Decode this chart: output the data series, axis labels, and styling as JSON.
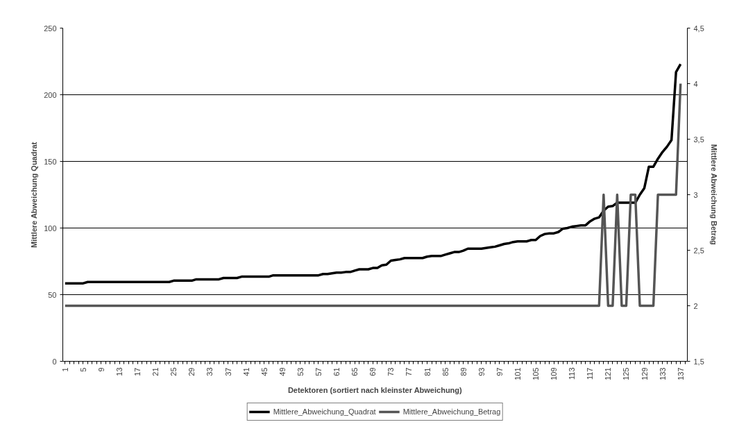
{
  "chart_data": {
    "type": "line",
    "xlabel": "Detektoren (sortiert nach kleinster Abweichung)",
    "ylabel": "Mittlere Abweichung Quadrat",
    "y2label": "Mittlere Abweichung Betrag",
    "categories": [
      "1",
      null,
      null,
      null,
      "5",
      null,
      null,
      null,
      "9",
      null,
      null,
      null,
      "13",
      null,
      null,
      null,
      "17",
      null,
      null,
      null,
      "21",
      null,
      null,
      null,
      "25",
      null,
      null,
      null,
      "29",
      null,
      null,
      null,
      "33",
      null,
      null,
      null,
      "37",
      null,
      null,
      null,
      "41",
      null,
      null,
      null,
      "45",
      null,
      null,
      null,
      "49",
      null,
      null,
      null,
      "53",
      null,
      null,
      null,
      "57",
      null,
      null,
      null,
      "61",
      null,
      null,
      null,
      "65",
      null,
      null,
      null,
      "69",
      null,
      null,
      null,
      "73",
      null,
      null,
      null,
      "77",
      null,
      null,
      null,
      "81",
      null,
      null,
      null,
      "85",
      null,
      null,
      null,
      "89",
      null,
      null,
      null,
      "93",
      null,
      null,
      null,
      "97",
      null,
      null,
      null,
      "101",
      null,
      null,
      null,
      "105",
      null,
      null,
      null,
      "109",
      null,
      null,
      null,
      "113",
      null,
      null,
      null,
      "117",
      null,
      null,
      null,
      "121",
      null,
      null,
      null,
      "125",
      null,
      null,
      null,
      "129",
      null,
      null,
      null,
      "133",
      null,
      null,
      null,
      "137",
      null
    ],
    "series": [
      {
        "name": "Mittlere_Abweichung_Quadrat",
        "color": "#000000",
        "values": [
          58.5,
          58.5,
          58.5,
          58.5,
          58.5,
          59.5,
          59.5,
          59.5,
          59.5,
          59.5,
          59.5,
          59.5,
          59.5,
          59.5,
          59.5,
          59.5,
          59.5,
          59.5,
          59.5,
          59.5,
          59.5,
          59.5,
          59.5,
          59.5,
          60.5,
          60.5,
          60.5,
          60.5,
          60.5,
          61.5,
          61.5,
          61.5,
          61.5,
          61.5,
          61.5,
          62.5,
          62.5,
          62.5,
          62.5,
          63.5,
          63.5,
          63.5,
          63.5,
          63.5,
          63.5,
          63.5,
          64.5,
          64.5,
          64.5,
          64.5,
          64.5,
          64.5,
          64.5,
          64.5,
          64.5,
          64.5,
          64.5,
          65.5,
          65.5,
          66,
          66.5,
          66.5,
          67,
          67,
          68,
          69,
          69,
          69,
          70,
          70,
          72,
          72.5,
          75.5,
          76,
          76.5,
          77.5,
          77.5,
          77.5,
          77.5,
          77.5,
          78.5,
          79,
          79,
          79,
          80,
          81,
          82,
          82,
          83,
          84.5,
          84.5,
          84.5,
          84.5,
          85,
          85.5,
          86,
          87,
          88,
          88.5,
          89.5,
          90,
          90,
          90,
          91,
          91,
          94,
          95.5,
          96,
          96,
          97,
          99.5,
          100,
          101,
          101.5,
          102,
          102,
          105,
          107,
          108,
          113,
          116,
          116.5,
          119,
          119,
          119,
          119,
          119,
          125,
          130,
          146,
          146,
          152,
          157,
          161,
          166,
          217,
          223,
          null
        ]
      },
      {
        "name": "Mittlere_Abweichung_Betrag",
        "color": "#555555",
        "axis": "y2",
        "values": [
          2,
          2,
          2,
          2,
          2,
          2,
          2,
          2,
          2,
          2,
          2,
          2,
          2,
          2,
          2,
          2,
          2,
          2,
          2,
          2,
          2,
          2,
          2,
          2,
          2,
          2,
          2,
          2,
          2,
          2,
          2,
          2,
          2,
          2,
          2,
          2,
          2,
          2,
          2,
          2,
          2,
          2,
          2,
          2,
          2,
          2,
          2,
          2,
          2,
          2,
          2,
          2,
          2,
          2,
          2,
          2,
          2,
          2,
          2,
          2,
          2,
          2,
          2,
          2,
          2,
          2,
          2,
          2,
          2,
          2,
          2,
          2,
          2,
          2,
          2,
          2,
          2,
          2,
          2,
          2,
          2,
          2,
          2,
          2,
          2,
          2,
          2,
          2,
          2,
          2,
          2,
          2,
          2,
          2,
          2,
          2,
          2,
          2,
          2,
          2,
          2,
          2,
          2,
          2,
          2,
          2,
          2,
          2,
          2,
          2,
          2,
          2,
          2,
          2,
          2,
          2,
          2,
          2,
          2,
          3,
          2,
          2,
          3,
          2,
          2,
          3,
          3,
          2,
          2,
          2,
          2,
          3,
          3,
          3,
          3,
          3,
          4,
          null
        ]
      }
    ],
    "ylim": [
      0,
      250
    ],
    "yticks": [
      0,
      50,
      100,
      150,
      200,
      250
    ],
    "y2lim": [
      1.5,
      4.5
    ],
    "y2ticks": [
      {
        "value": 1.5,
        "label": "1,5"
      },
      2,
      {
        "value": 2.5,
        "label": "2,5"
      },
      3,
      {
        "value": 3.5,
        "label": "3,5"
      },
      4,
      {
        "value": 4.5,
        "label": "4,5"
      }
    ],
    "grid": "y",
    "legend": "bottom",
    "marker": "none",
    "line_style": "solid"
  }
}
